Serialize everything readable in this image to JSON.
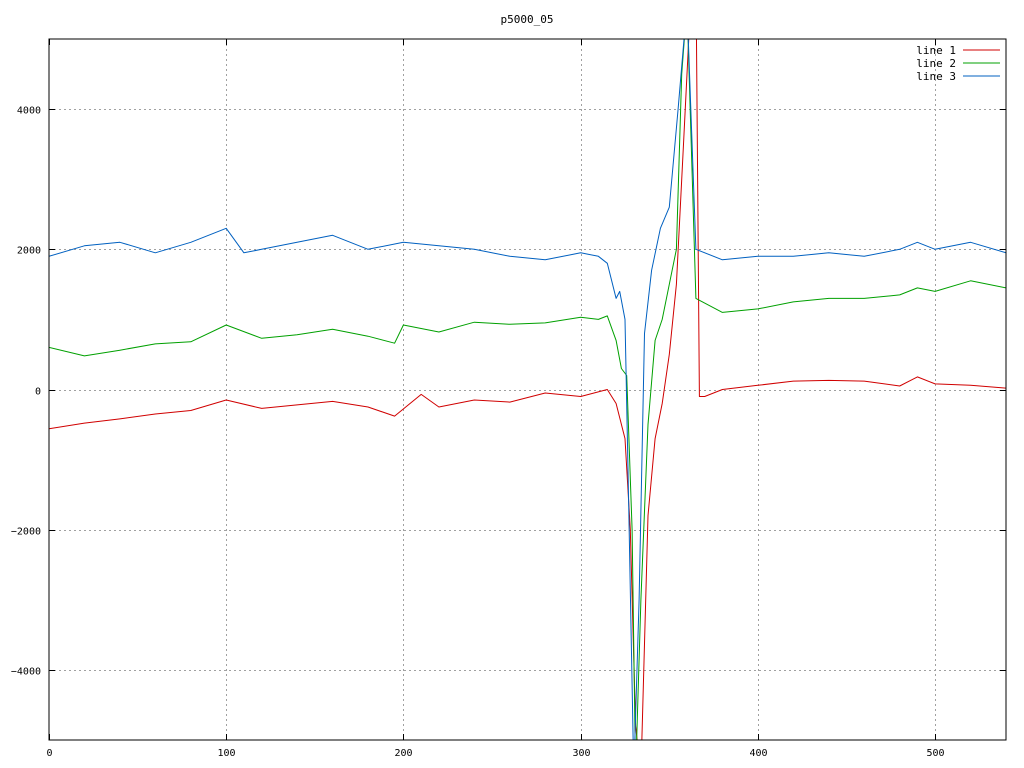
{
  "chart_data": {
    "type": "line",
    "title": "p5000_05",
    "xlabel": "",
    "ylabel": "",
    "xlim": [
      0,
      540
    ],
    "ylim": [
      -5000,
      5000
    ],
    "xticks": [
      0,
      100,
      200,
      300,
      400,
      500
    ],
    "yticks": [
      -4000,
      -2000,
      0,
      2000,
      4000
    ],
    "grid": true,
    "legend_position": "top-right",
    "series": [
      {
        "name": "line 1",
        "color": "#d00000",
        "x": [
          0,
          20,
          40,
          60,
          80,
          100,
          120,
          140,
          160,
          180,
          195,
          210,
          220,
          240,
          260,
          280,
          300,
          315,
          320,
          325,
          328,
          331,
          334,
          338,
          342,
          346,
          350,
          354,
          358,
          362,
          365,
          367,
          370,
          380,
          400,
          420,
          440,
          460,
          480,
          490,
          500,
          520,
          540
        ],
        "y": [
          -560,
          -480,
          -420,
          -350,
          -300,
          -150,
          -270,
          -220,
          -170,
          -250,
          -380,
          -70,
          -250,
          -150,
          -180,
          -50,
          -100,
          0,
          -200,
          -700,
          -2000,
          -4800,
          -5500,
          -1800,
          -700,
          -200,
          500,
          1500,
          3500,
          5500,
          6000,
          -100,
          -100,
          0,
          60,
          120,
          130,
          120,
          50,
          180,
          80,
          60,
          20
        ]
      },
      {
        "name": "line 2",
        "color": "#00a000",
        "x": [
          0,
          20,
          40,
          60,
          80,
          100,
          120,
          140,
          160,
          180,
          195,
          200,
          220,
          240,
          260,
          280,
          300,
          310,
          315,
          320,
          323,
          326,
          329,
          331,
          334,
          338,
          342,
          346,
          350,
          354,
          357,
          360,
          365,
          380,
          400,
          420,
          440,
          460,
          480,
          490,
          500,
          520,
          540
        ],
        "y": [
          600,
          480,
          560,
          650,
          680,
          920,
          730,
          780,
          860,
          760,
          660,
          920,
          820,
          960,
          930,
          950,
          1030,
          1000,
          1050,
          700,
          300,
          200,
          -2000,
          -5500,
          -3000,
          -500,
          700,
          1000,
          1500,
          2000,
          4500,
          5500,
          1300,
          1100,
          1150,
          1250,
          1300,
          1300,
          1350,
          1450,
          1400,
          1550,
          1450
        ]
      },
      {
        "name": "line 3",
        "color": "#0060c0",
        "x": [
          0,
          20,
          40,
          60,
          80,
          100,
          110,
          120,
          140,
          160,
          180,
          200,
          220,
          240,
          260,
          280,
          300,
          310,
          315,
          320,
          322,
          325,
          327,
          330,
          333,
          336,
          340,
          345,
          350,
          355,
          360,
          365,
          380,
          400,
          420,
          440,
          460,
          480,
          490,
          500,
          520,
          540
        ],
        "y": [
          1900,
          2050,
          2100,
          1950,
          2100,
          2300,
          1950,
          2000,
          2100,
          2200,
          2000,
          2100,
          2050,
          2000,
          1900,
          1850,
          1950,
          1900,
          1800,
          1300,
          1400,
          1000,
          -1500,
          -5500,
          -3000,
          800,
          1700,
          2300,
          2600,
          4000,
          5500,
          2000,
          1850,
          1900,
          1900,
          1950,
          1900,
          2000,
          2100,
          2000,
          2100,
          1950
        ]
      }
    ]
  }
}
